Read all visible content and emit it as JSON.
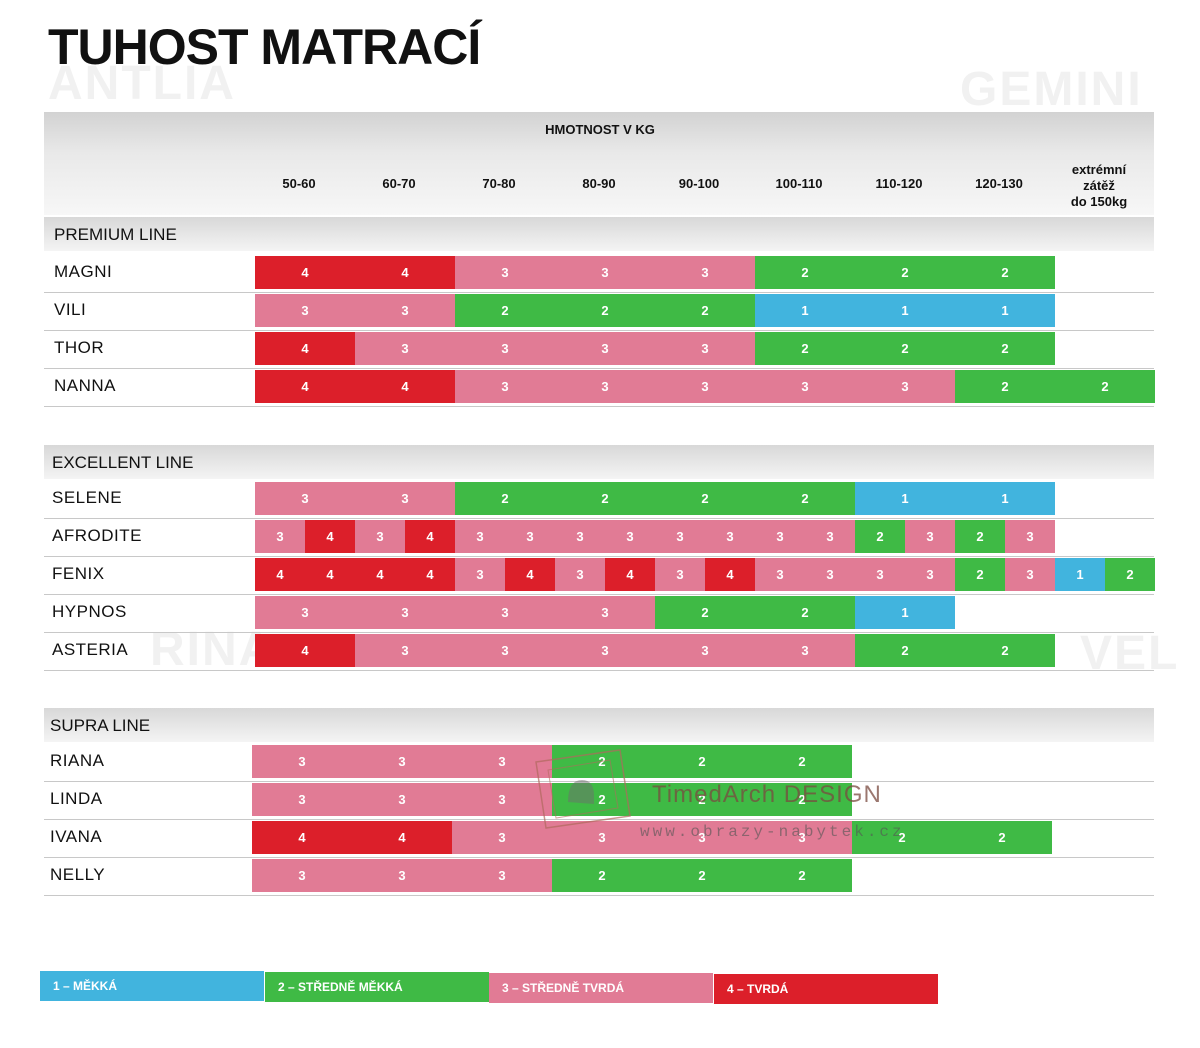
{
  "title": "TUHOST MATRACÍ",
  "header": {
    "weight_title": "HMOTNOST V KG",
    "columns": [
      "50-60",
      "60-70",
      "70-80",
      "80-90",
      "90-100",
      "100-110",
      "110-120",
      "120-130",
      "extrémní\nzátěž\ndo 150kg"
    ]
  },
  "colors": {
    "1": "#41b4de",
    "2": "#3fba45",
    "3": "#e17b95",
    "4": "#dc1f2a"
  },
  "sections": [
    {
      "name": "PREMIUM LINE",
      "rows": [
        {
          "name": "MAGNI",
          "half": false,
          "values": [
            "4",
            "4",
            "3",
            "3",
            "3",
            "2",
            "2",
            "2"
          ]
        },
        {
          "name": "VILI",
          "half": false,
          "values": [
            "3",
            "3",
            "2",
            "2",
            "2",
            "1",
            "1",
            "1"
          ]
        },
        {
          "name": "THOR",
          "half": false,
          "values": [
            "4",
            "3",
            "3",
            "3",
            "3",
            "2",
            "2",
            "2"
          ]
        },
        {
          "name": "NANNA",
          "half": false,
          "values": [
            "4",
            "4",
            "3",
            "3",
            "3",
            "3",
            "3",
            "2",
            "2"
          ]
        }
      ]
    },
    {
      "name": "EXCELLENT LINE",
      "rows": [
        {
          "name": "SELENE",
          "half": false,
          "values": [
            "3",
            "3",
            "2",
            "2",
            "2",
            "2",
            "1",
            "1"
          ]
        },
        {
          "name": "AFRODITE",
          "half": true,
          "values": [
            "3",
            "4",
            "3",
            "4",
            "3",
            "3",
            "3",
            "3",
            "3",
            "3",
            "3",
            "3",
            "2",
            "3",
            "2",
            "3"
          ]
        },
        {
          "name": "FENIX",
          "half": true,
          "values": [
            "4",
            "4",
            "4",
            "4",
            "3",
            "4",
            "3",
            "4",
            "3",
            "4",
            "3",
            "3",
            "3",
            "3",
            "2",
            "3",
            "1",
            "2"
          ]
        },
        {
          "name": "HYPNOS",
          "half": false,
          "values": [
            "3",
            "3",
            "3",
            "3",
            "2",
            "2",
            "1"
          ]
        },
        {
          "name": "ASTERIA",
          "half": false,
          "values": [
            "4",
            "3",
            "3",
            "3",
            "3",
            "3",
            "2",
            "2"
          ]
        }
      ]
    },
    {
      "name": "SUPRA LINE",
      "rows": [
        {
          "name": "RIANA",
          "half": false,
          "values": [
            "3",
            "3",
            "3",
            "2",
            "2",
            "2"
          ]
        },
        {
          "name": "LINDA",
          "half": false,
          "values": [
            "3",
            "3",
            "3",
            "2",
            "2",
            "2"
          ]
        },
        {
          "name": "IVANA",
          "half": false,
          "values": [
            "4",
            "4",
            "3",
            "3",
            "3",
            "3",
            "2",
            "2"
          ]
        },
        {
          "name": "NELLY",
          "half": false,
          "values": [
            "3",
            "3",
            "3",
            "2",
            "2",
            "2"
          ]
        }
      ]
    }
  ],
  "legend": [
    {
      "key": "1",
      "label": "1 – MĚKKÁ"
    },
    {
      "key": "2",
      "label": "2 – STŘEDNĚ MĚKKÁ"
    },
    {
      "key": "3",
      "label": "3 – STŘEDNĚ TVRDÁ"
    },
    {
      "key": "4",
      "label": "4 – TVRDÁ"
    }
  ],
  "background_text": [
    "ANTLIA",
    "GEMINI",
    "VEL",
    "RINA"
  ],
  "watermark": {
    "brand": "TimedArch DESIGN",
    "url": "www.obrazy-nabytek.cz"
  }
}
